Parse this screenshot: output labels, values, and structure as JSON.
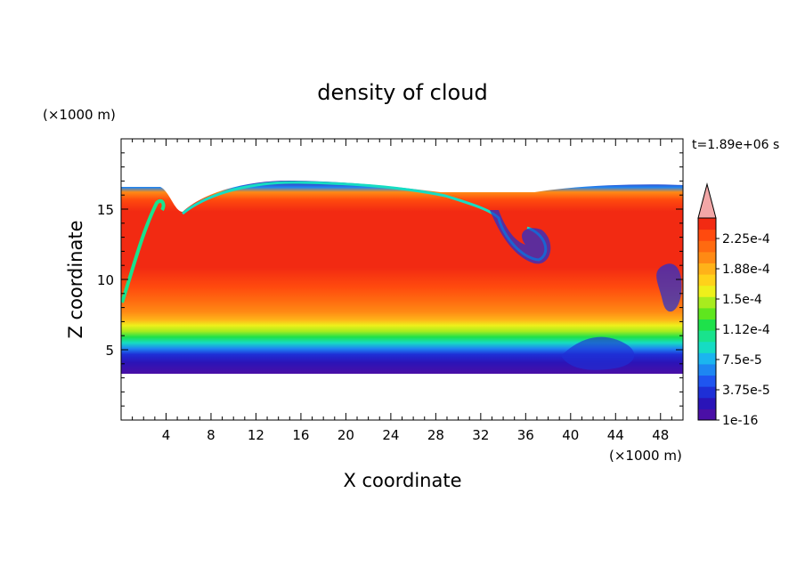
{
  "chart_data": {
    "type": "heatmap",
    "title": "density of cloud",
    "xlabel": "X coordinate",
    "ylabel": "Z coordinate",
    "x_unit": "(×1000 m)",
    "y_unit": "(×1000 m)",
    "time_label": "t=1.89e+06 s",
    "xlim": [
      0,
      50
    ],
    "ylim": [
      0,
      20
    ],
    "x_ticks": [
      4,
      8,
      12,
      16,
      20,
      24,
      28,
      32,
      36,
      40,
      44,
      48
    ],
    "x_tick_labels": [
      "4",
      "8",
      "12",
      "16",
      "20",
      "24",
      "28",
      "32",
      "36",
      "40",
      "44",
      "48"
    ],
    "y_ticks": [
      5,
      10,
      15
    ],
    "y_tick_labels": [
      "5",
      "10",
      "15"
    ],
    "colorbar": {
      "labels": [
        "2.25e-4",
        "1.88e-4",
        "1.5e-4",
        "1.12e-4",
        "7.5e-5",
        "3.75e-5",
        "1e-16"
      ],
      "colors": [
        "#4a0fa6",
        "#2a14b8",
        "#1e2fd6",
        "#1f55f0",
        "#1e86f2",
        "#1bb5ef",
        "#16dcc3",
        "#19e38d",
        "#1ee14b",
        "#5fe61e",
        "#a8ec1e",
        "#eef01b",
        "#ffd21a",
        "#ffb219",
        "#ff8a14",
        "#ff6a10",
        "#ff4a0e",
        "#f22a12"
      ],
      "overflow_color": "#f2a7a7"
    },
    "cloud_layer": {
      "base_z": 3.4,
      "top_z": 16.5,
      "core_value": "2.25e-4"
    }
  }
}
